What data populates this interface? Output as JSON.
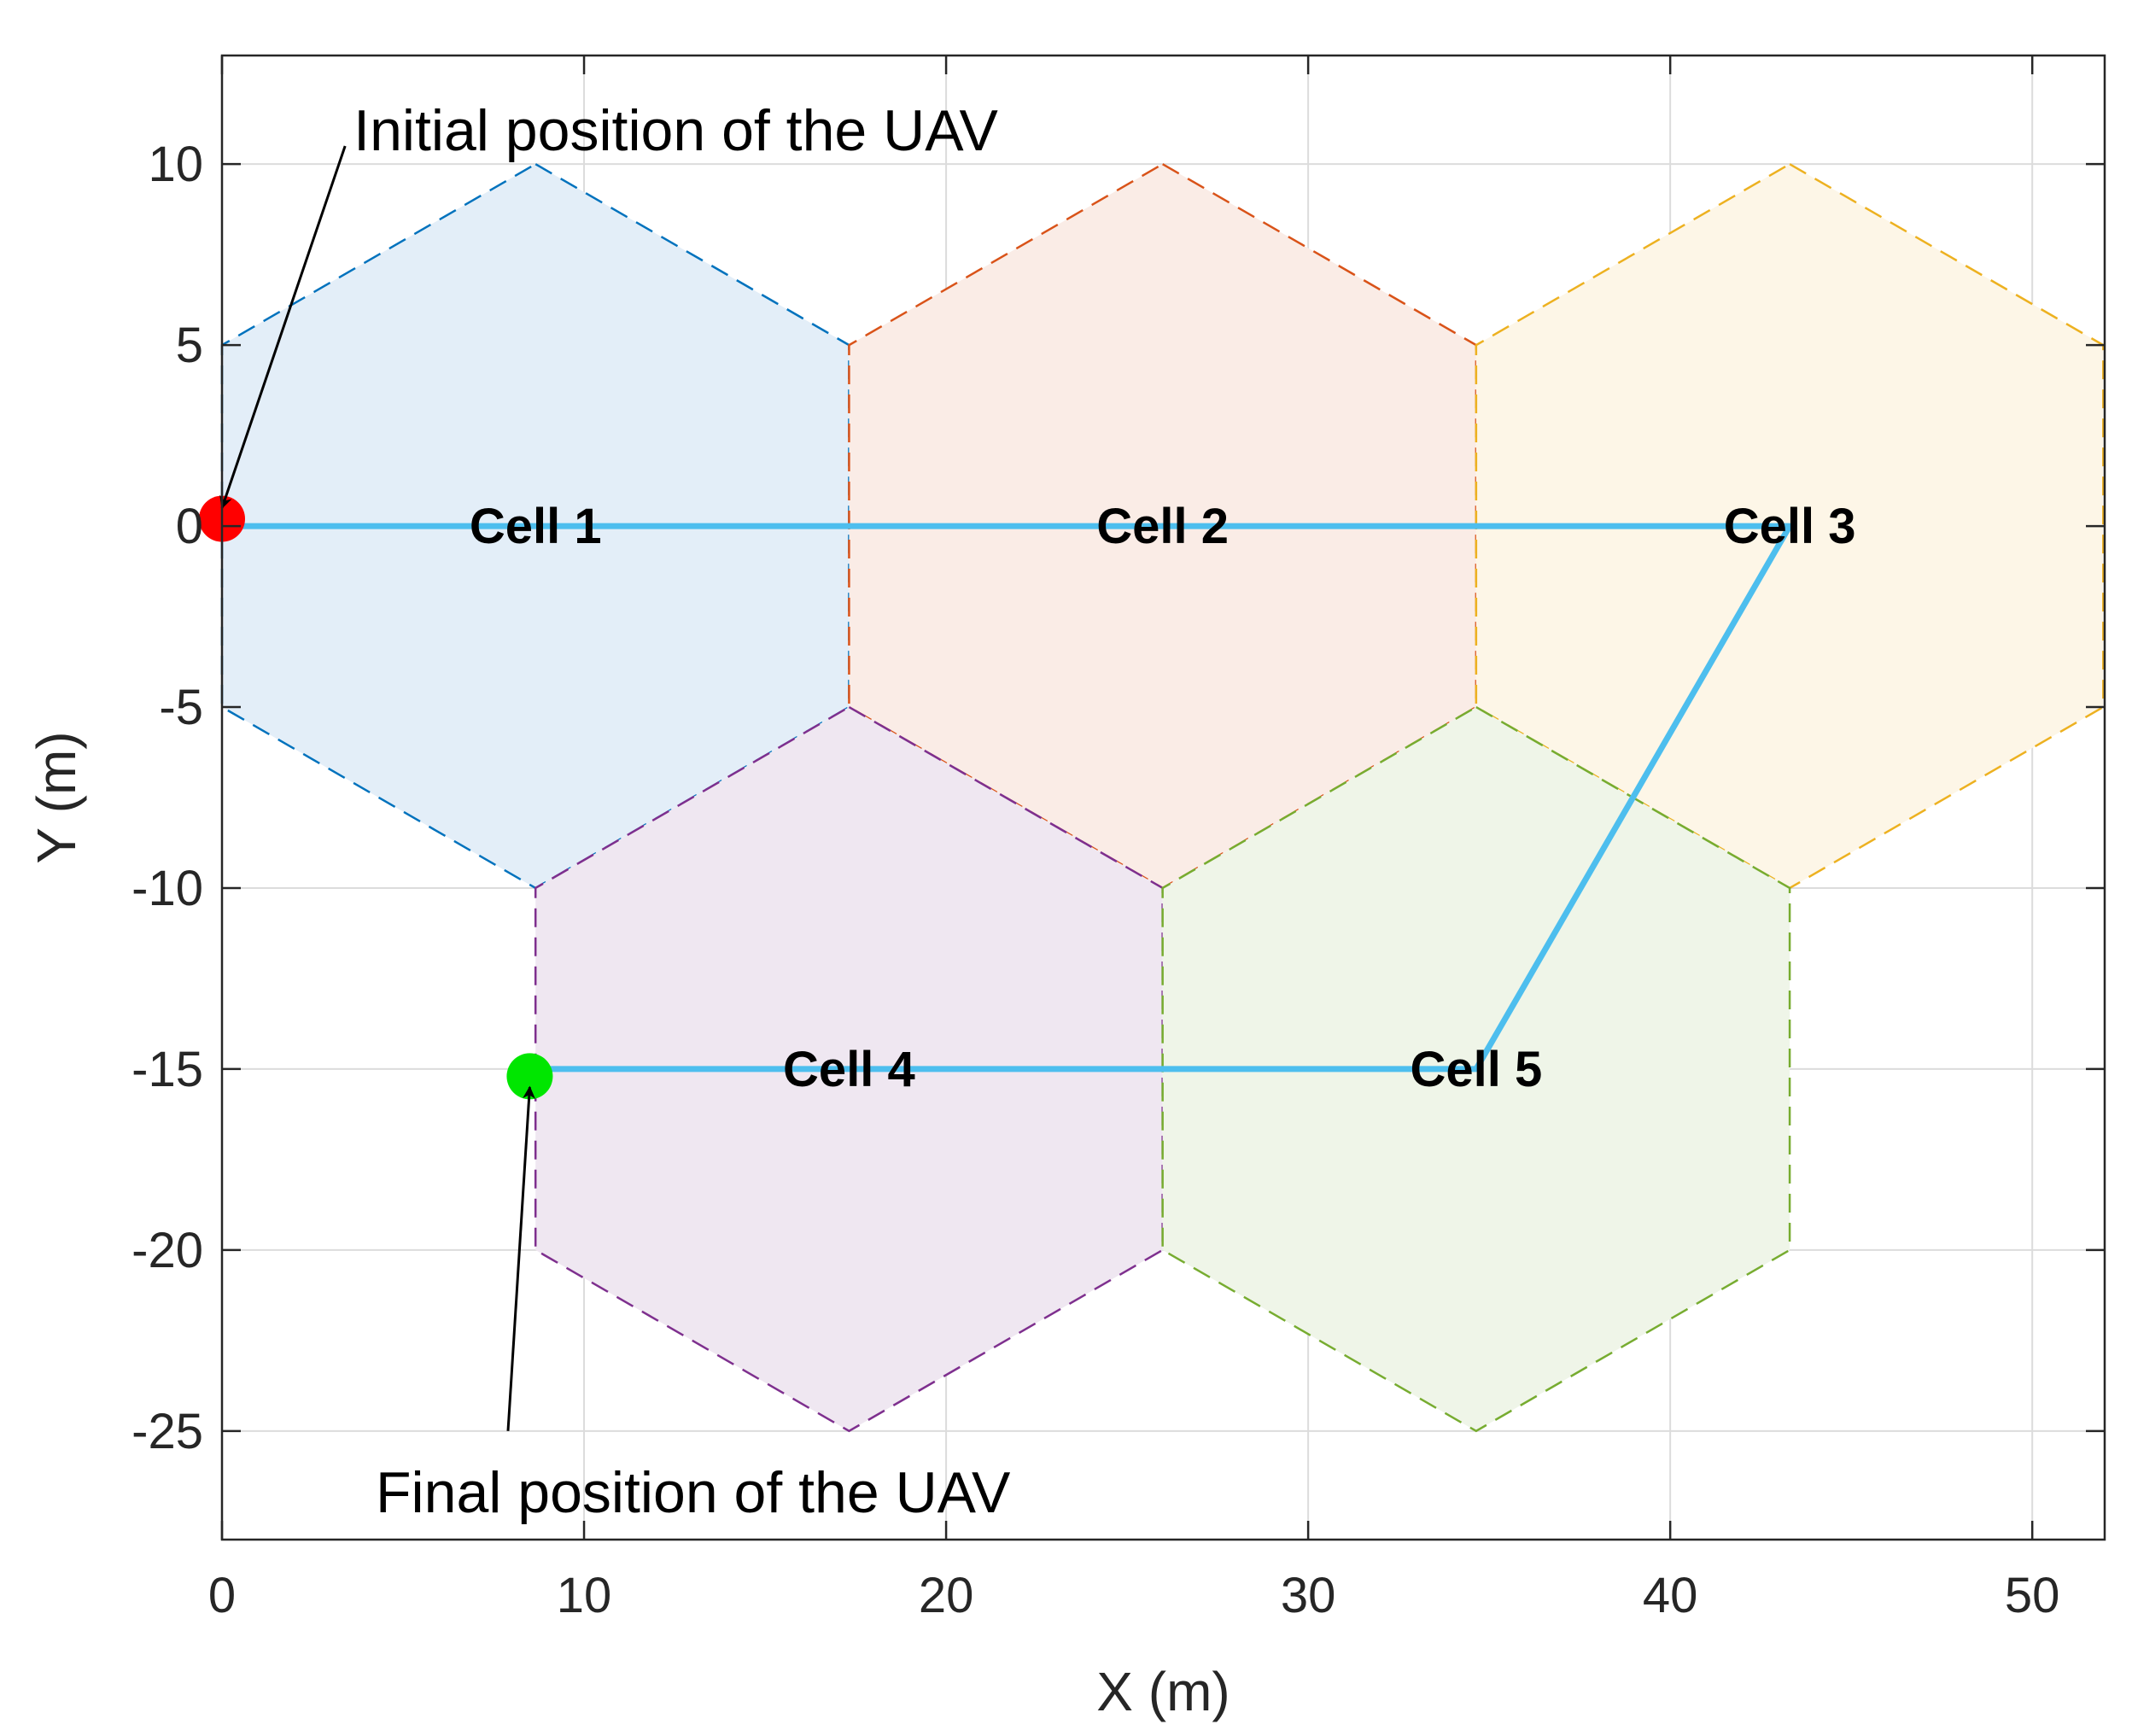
{
  "chart_data": {
    "type": "scatter",
    "title": "",
    "xlabel": "X (m)",
    "ylabel": "Y (m)",
    "xlim": [
      0,
      52
    ],
    "ylim": [
      -28,
      13
    ],
    "grid": true,
    "xticks": [
      0,
      10,
      20,
      30,
      40,
      50
    ],
    "yticks": [
      10,
      5,
      0,
      -5,
      -10,
      -15,
      -20,
      -25
    ],
    "xtick_labels": [
      "0",
      "10",
      "20",
      "30",
      "40",
      "50"
    ],
    "ytick_labels": [
      "10",
      "5",
      "0",
      "-5",
      "-10",
      "-15",
      "-20",
      "-25"
    ],
    "cells": [
      {
        "label": "Cell 1",
        "center": [
          8.66,
          0
        ],
        "color": "#0072BD",
        "fill": "#E3EEF8"
      },
      {
        "label": "Cell 2",
        "center": [
          25.98,
          0
        ],
        "color": "#D95319",
        "fill": "#FAECE6"
      },
      {
        "label": "Cell 3",
        "center": [
          43.3,
          0
        ],
        "color": "#EDB120",
        "fill": "#FDF6E7"
      },
      {
        "label": "Cell 4",
        "center": [
          17.32,
          -15
        ],
        "color": "#7E2F8E",
        "fill": "#EFE7F1"
      },
      {
        "label": "Cell 5",
        "center": [
          34.64,
          -15
        ],
        "color": "#77AC30",
        "fill": "#EFF5E8"
      }
    ],
    "cell_radius": 10,
    "trajectory": {
      "color": "#4DBEEE",
      "points": [
        [
          0,
          0
        ],
        [
          43.3,
          0
        ],
        [
          34.64,
          -15
        ],
        [
          8.66,
          -15
        ]
      ]
    },
    "markers": [
      {
        "role": "start",
        "x": 0,
        "y": 0.2,
        "color": "#FF0000"
      },
      {
        "role": "end",
        "x": 8.5,
        "y": -15.2,
        "color": "#00E600"
      }
    ],
    "annotations": [
      {
        "text": "Initial position of the UAV",
        "target": [
          0,
          0.5
        ],
        "from": [
          3.4,
          10.5
        ]
      },
      {
        "text": "Final position of the UAV",
        "target": [
          8.5,
          -15.5
        ],
        "from": [
          7.9,
          -25
        ]
      }
    ]
  }
}
